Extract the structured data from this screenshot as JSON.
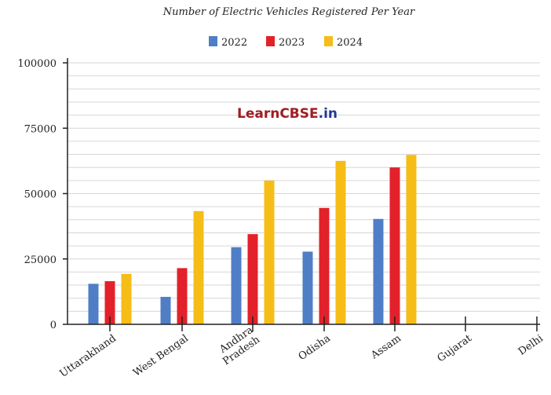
{
  "chart_data": {
    "type": "bar",
    "title": "Number of Electric Vehicles Registered Per Year",
    "categories": [
      "Uttarakhand",
      "West Bengal",
      "Andhra Pradesh",
      "Odisha",
      "Assam",
      "Gujarat",
      "Delhi"
    ],
    "series": [
      {
        "name": "2022",
        "color": "#4f7ec6",
        "values": [
          15500,
          10500,
          29500,
          27800,
          40300,
          null,
          null
        ]
      },
      {
        "name": "2023",
        "color": "#e3212a",
        "values": [
          16500,
          21500,
          34500,
          44500,
          60000,
          null,
          null
        ]
      },
      {
        "name": "2024",
        "color": "#f6bd16",
        "values": [
          19300,
          43300,
          55000,
          62500,
          64800,
          null,
          null
        ]
      }
    ],
    "yticks": [
      0,
      25000,
      50000,
      75000,
      100000
    ],
    "ylim": [
      0,
      100000
    ],
    "grid": true,
    "legend": "top-center"
  },
  "watermark": {
    "part1": "Learn",
    "part2": "CBSE",
    "part3": ".in",
    "color1": "#a01c22",
    "color2": "#1f3a93"
  }
}
